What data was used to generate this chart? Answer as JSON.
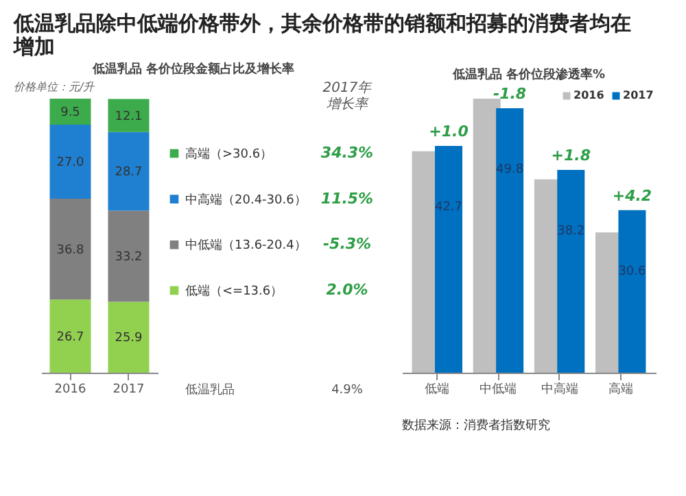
{
  "chart_data": [
    {
      "type": "bar",
      "stacked": true,
      "title": "低温乳品除中低端价格带外，其余价格带的销额和招募的消费者均在增加",
      "subtitle": "低温乳品 各价位段金额占比及增长率",
      "categories": [
        "2016",
        "2017"
      ],
      "series": [
        {
          "name": "低端（<=13.6）",
          "color": "#92d050",
          "values": [
            26.7,
            25.9
          ],
          "value_labels": [
            "26.7",
            "25.9"
          ]
        },
        {
          "name": "中低端（13.6-20.4）",
          "color": "#808080",
          "values": [
            36.8,
            33.2
          ],
          "value_labels": [
            "36.8",
            "33.2"
          ]
        },
        {
          "name": "中高端（20.4-30.6）",
          "color": "#1f7fd0",
          "values": [
            27.0,
            28.7
          ],
          "value_labels": [
            "27.0",
            "28.7"
          ]
        },
        {
          "name": "高端（>30.6）",
          "color": "#3cab4b",
          "values": [
            9.5,
            12.1
          ],
          "value_labels": [
            "9.5",
            "12.1"
          ]
        }
      ],
      "legend": "right",
      "grid": false,
      "annotations": [
        "价格单位：元/升",
        "2017年",
        "增长率",
        "34.3%",
        "11.5%",
        "-5.3%",
        "2.0%",
        "低温乳品",
        "4.9%"
      ]
    },
    {
      "type": "bar",
      "title": "低温乳品 各价位段渗透率%",
      "categories": [
        "低端",
        "中低端",
        "中高端",
        "高端"
      ],
      "series": [
        {
          "name": "2016",
          "color": "#bfbfbf",
          "values": [
            41.7,
            51.6,
            36.4,
            26.4
          ]
        },
        {
          "name": "2017",
          "color": "#0070c0",
          "values": [
            42.7,
            49.8,
            38.2,
            30.6
          ],
          "value_labels": [
            "42.7",
            "49.8",
            "38.2",
            "30.6"
          ]
        }
      ],
      "legend": "top right",
      "grid": false,
      "annotations": [
        {
          "text": "+1.0",
          "x": "低端",
          "y": 42.7
        },
        {
          "text": "-1.8",
          "x": "中低端",
          "y": 49.8
        },
        {
          "text": "+1.8",
          "x": "中高端",
          "y": 38.2
        },
        {
          "text": "+4.2",
          "x": "高端",
          "y": 30.6
        },
        "数据来源：消费者指数研究"
      ]
    }
  ]
}
